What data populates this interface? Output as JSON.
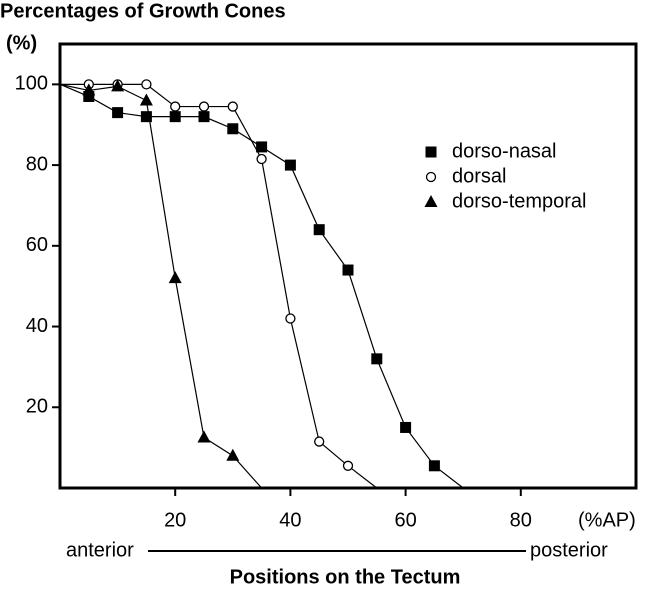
{
  "chart_data": {
    "type": "line",
    "title": "Percentages of Growth Cones",
    "y_unit": "(%)",
    "x_unit": "(%AP)",
    "x_label": "Positions on the Tectum",
    "x_start_label": "anterior",
    "x_end_label": "posterior",
    "xlim": [
      0,
      100
    ],
    "ylim": [
      0,
      110
    ],
    "xticks": [
      20,
      40,
      60,
      80
    ],
    "yticks": [
      20,
      40,
      60,
      80,
      100
    ],
    "legend": "upper right",
    "series": [
      {
        "name": "dorso-nasal",
        "color": "#000",
        "marker": "square",
        "x": [
          0,
          5,
          10,
          15,
          20,
          25,
          30,
          35,
          40,
          45,
          50,
          55,
          60,
          65,
          70
        ],
        "values": [
          100,
          97,
          93,
          92,
          92,
          92,
          89,
          84.5,
          80,
          64,
          54,
          32,
          15,
          5.5,
          0
        ]
      },
      {
        "name": "dorsal",
        "color": "#000",
        "marker": "circle",
        "x": [
          0,
          5,
          10,
          15,
          20,
          25,
          30,
          35,
          40,
          45,
          50,
          55
        ],
        "values": [
          100,
          100,
          100,
          100,
          94.5,
          94.5,
          94.5,
          81.5,
          42,
          11.5,
          5.5,
          0
        ]
      },
      {
        "name": "dorso-temporal",
        "color": "#000",
        "marker": "triangle",
        "x": [
          0,
          5,
          10,
          15,
          20,
          25,
          30,
          35
        ],
        "values": [
          100,
          98.5,
          99.5,
          96,
          52,
          12.5,
          8,
          0
        ]
      }
    ]
  }
}
